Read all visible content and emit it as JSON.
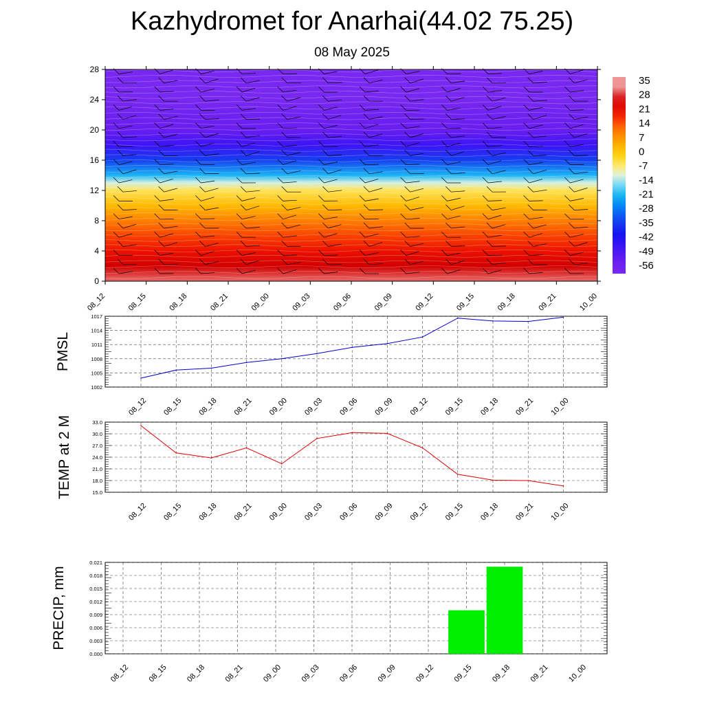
{
  "title": "Kazhydromet for Anarhai(44.02 75.25)",
  "date": "08 May 2025",
  "time_labels": [
    "08_12",
    "08_15",
    "08_18",
    "08_21",
    "09_00",
    "09_03",
    "09_06",
    "09_09",
    "09_12",
    "09_15",
    "09_18",
    "09_21",
    "10_00"
  ],
  "colorbar_labels": [
    "35",
    "28",
    "21",
    "14",
    "7",
    "0",
    "-7",
    "-14",
    "-21",
    "-28",
    "-35",
    "-42",
    "-49",
    "-56"
  ],
  "chart_data": [
    {
      "type": "heatmap",
      "name": "temperature-cross-section",
      "ylim": [
        0,
        28
      ],
      "yticks": [
        "0",
        "4",
        "8",
        "12",
        "16",
        "20",
        "24",
        "28"
      ],
      "categories": [
        "08_12",
        "08_15",
        "08_18",
        "08_21",
        "09_00",
        "09_03",
        "09_06",
        "09_09",
        "09_12",
        "09_15",
        "09_18",
        "09_21",
        "10_00"
      ],
      "colorbar": {
        "min": -56,
        "max": 35,
        "ticks": [
          35,
          28,
          21,
          14,
          7,
          0,
          -7,
          -14,
          -21,
          -28,
          -35,
          -42,
          -49,
          -56
        ]
      },
      "profile_levels": [
        0,
        2,
        4,
        6,
        8,
        10,
        12,
        13,
        14,
        16,
        18,
        20,
        22,
        24,
        28
      ],
      "profile_values": [
        33,
        28,
        22,
        17,
        11,
        3,
        -5,
        -12,
        -22,
        -36,
        -49,
        -56,
        -59,
        -63,
        -63
      ],
      "wind_barbs": "present"
    },
    {
      "type": "line",
      "name": "pmsl",
      "ylabel": "PMSL",
      "ylim": [
        1002,
        1017
      ],
      "yticks": [
        "1002",
        "1005",
        "1008",
        "1011",
        "1014",
        "1017"
      ],
      "categories": [
        "08_12",
        "08_15",
        "08_18",
        "08_21",
        "09_00",
        "09_03",
        "09_06",
        "09_09",
        "09_12",
        "09_15",
        "09_18",
        "09_21",
        "10_00"
      ],
      "values": [
        1003.9,
        1005.6,
        1006.0,
        1007.2,
        1008.0,
        1009.1,
        1010.4,
        1011.2,
        1012.6,
        1016.6,
        1016.0,
        1015.9,
        1016.8
      ],
      "color": "#0000cc"
    },
    {
      "type": "line",
      "name": "temp-2m",
      "ylabel": "TEMP at 2 M",
      "ylim": [
        15,
        33
      ],
      "yticks": [
        "15.0",
        "18.0",
        "21.0",
        "24.0",
        "27.0",
        "30.0",
        "33.0"
      ],
      "categories": [
        "08_12",
        "08_15",
        "08_18",
        "08_21",
        "09_00",
        "09_03",
        "09_06",
        "09_09",
        "09_12",
        "09_15",
        "09_18",
        "09_21",
        "10_00"
      ],
      "values": [
        32.1,
        25.1,
        23.8,
        26.4,
        22.3,
        28.8,
        30.3,
        30.1,
        26.4,
        19.6,
        18.1,
        18.0,
        16.6
      ],
      "color": "#dd0000"
    },
    {
      "type": "bar",
      "name": "precip",
      "ylabel": "PRECIP, mm",
      "ylim": [
        0,
        0.021
      ],
      "yticks": [
        "0.000",
        "0.003",
        "0.006",
        "0.009",
        "0.012",
        "0.015",
        "0.018",
        "0.021"
      ],
      "categories": [
        "08_12",
        "08_15",
        "08_18",
        "08_21",
        "09_00",
        "09_03",
        "09_06",
        "09_09",
        "09_12",
        "09_15",
        "09_18",
        "09_21",
        "10_00"
      ],
      "values": [
        0,
        0,
        0,
        0,
        0,
        0,
        0,
        0,
        0,
        0.01,
        0.02,
        0,
        0
      ],
      "color": "#00ee00"
    }
  ]
}
